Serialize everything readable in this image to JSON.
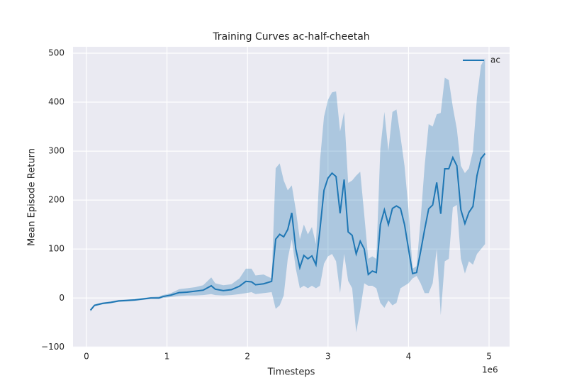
{
  "chart_data": {
    "type": "line",
    "title": "Training Curves ac-half-cheetah",
    "x_label": "Timesteps",
    "y_label": "Mean Episode Return",
    "x_offset_label": "1e6",
    "xlim": [
      -0.167,
      5.255
    ],
    "ylim": [
      -101,
      513
    ],
    "xticks": [
      0,
      1,
      2,
      3,
      4,
      5
    ],
    "yticks": [
      {
        "value": -100,
        "label": "−100"
      },
      0,
      100,
      200,
      300,
      400,
      500
    ],
    "grid": true,
    "legend": "upper right",
    "x": [
      0.05,
      0.1,
      0.2,
      0.3,
      0.4,
      0.5,
      0.6,
      0.7,
      0.8,
      0.9,
      0.95,
      1.05,
      1.15,
      1.25,
      1.35,
      1.45,
      1.55,
      1.6,
      1.7,
      1.8,
      1.9,
      1.98,
      2.05,
      2.1,
      2.2,
      2.3,
      2.35,
      2.4,
      2.45,
      2.5,
      2.55,
      2.6,
      2.65,
      2.7,
      2.75,
      2.8,
      2.85,
      2.9,
      2.95,
      3.0,
      3.05,
      3.1,
      3.15,
      3.2,
      3.25,
      3.3,
      3.35,
      3.4,
      3.45,
      3.5,
      3.55,
      3.6,
      3.65,
      3.7,
      3.75,
      3.8,
      3.85,
      3.9,
      3.95,
      4.0,
      4.05,
      4.1,
      4.15,
      4.2,
      4.25,
      4.3,
      4.35,
      4.4,
      4.45,
      4.5,
      4.55,
      4.6,
      4.65,
      4.7,
      4.75,
      4.8,
      4.85,
      4.9,
      4.95
    ],
    "series": [
      {
        "name": "ac",
        "color": "#1f77b4",
        "values": [
          -25,
          -15,
          -11,
          -9,
          -6,
          -5,
          -4,
          -2,
          0,
          0,
          3,
          6,
          11,
          12,
          14,
          16,
          25,
          18,
          15,
          17,
          24,
          34,
          33,
          27,
          29,
          34,
          120,
          130,
          125,
          140,
          174,
          100,
          62,
          87,
          80,
          86,
          68,
          140,
          220,
          245,
          255,
          248,
          173,
          242,
          135,
          128,
          90,
          116,
          100,
          48,
          55,
          52,
          150,
          180,
          150,
          183,
          188,
          183,
          150,
          100,
          50,
          52,
          95,
          140,
          182,
          190,
          236,
          172,
          264,
          264,
          287,
          270,
          180,
          152,
          175,
          187,
          250,
          285,
          295
        ],
        "lower": [
          -28,
          -17,
          -13,
          -11,
          -8,
          -7,
          -6,
          -4,
          -2,
          -2,
          0,
          2,
          4,
          5,
          5,
          6,
          8,
          6,
          5,
          6,
          8,
          10,
          12,
          8,
          10,
          12,
          -22,
          -15,
          5,
          80,
          120,
          60,
          20,
          25,
          20,
          25,
          20,
          25,
          70,
          85,
          90,
          75,
          10,
          90,
          35,
          20,
          -70,
          -25,
          30,
          25,
          25,
          20,
          -10,
          -20,
          -5,
          -15,
          -10,
          20,
          25,
          30,
          40,
          45,
          30,
          10,
          10,
          30,
          100,
          -35,
          75,
          80,
          185,
          190,
          80,
          50,
          75,
          68,
          90,
          100,
          110
        ],
        "upper": [
          -22,
          -13,
          -9,
          -7,
          -4,
          -3,
          -2,
          0,
          2,
          3,
          6,
          10,
          18,
          20,
          22,
          26,
          42,
          30,
          26,
          28,
          40,
          60,
          60,
          46,
          48,
          40,
          265,
          275,
          240,
          220,
          230,
          180,
          120,
          150,
          130,
          145,
          110,
          280,
          370,
          405,
          420,
          422,
          340,
          380,
          235,
          240,
          250,
          258,
          170,
          80,
          85,
          80,
          305,
          380,
          300,
          380,
          385,
          330,
          270,
          180,
          60,
          65,
          160,
          270,
          355,
          350,
          375,
          378,
          450,
          445,
          390,
          345,
          270,
          255,
          265,
          300,
          410,
          475,
          490
        ]
      }
    ]
  }
}
